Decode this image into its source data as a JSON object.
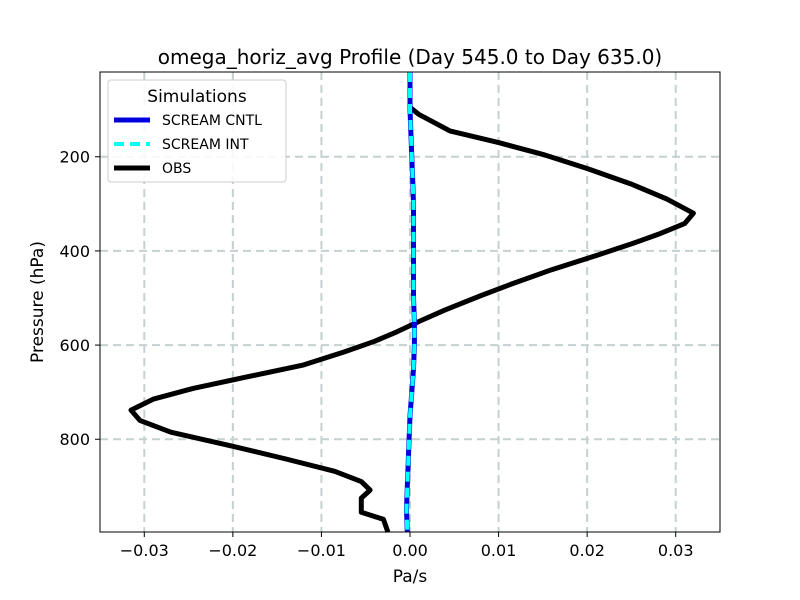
{
  "chart_data": {
    "type": "line",
    "title": "omega_horiz_avg Profile (Day 545.0 to Day 635.0)",
    "xlabel": "Pa/s",
    "ylabel": "Pressure (hPa)",
    "xlim": [
      -0.035,
      0.035
    ],
    "ylim": [
      997,
      20
    ],
    "y_inverted": true,
    "grid": true,
    "legend": {
      "title": "Simulations",
      "placement": "top-left"
    },
    "x_ticks": [
      -0.03,
      -0.02,
      -0.01,
      0.0,
      0.01,
      0.02,
      0.03
    ],
    "x_tick_labels": [
      "−0.03",
      "−0.02",
      "−0.01",
      "0.00",
      "0.01",
      "0.02",
      "0.03"
    ],
    "y_ticks": [
      200,
      400,
      600,
      800
    ],
    "y_tick_labels": [
      "200",
      "400",
      "600",
      "800"
    ],
    "series": [
      {
        "name": "SCREAM CNTL",
        "color": "#0000dd",
        "style": "solid",
        "points": [
          [
            0.0,
            20
          ],
          [
            0.0,
            100
          ],
          [
            0.0001,
            150
          ],
          [
            0.0002,
            200
          ],
          [
            0.0003,
            250
          ],
          [
            0.0004,
            300
          ],
          [
            0.0004,
            350
          ],
          [
            0.0004,
            400
          ],
          [
            0.0004,
            450
          ],
          [
            0.0004,
            500
          ],
          [
            0.0005,
            550
          ],
          [
            0.0005,
            600
          ],
          [
            0.0004,
            650
          ],
          [
            0.0002,
            700
          ],
          [
            0.0,
            750
          ],
          [
            -0.0001,
            800
          ],
          [
            -0.0002,
            850
          ],
          [
            -0.0003,
            900
          ],
          [
            -0.0004,
            950
          ],
          [
            -0.0003,
            997
          ]
        ]
      },
      {
        "name": "SCREAM INT",
        "color": "#00ffff",
        "style": "dashed",
        "points": [
          [
            0.0,
            20
          ],
          [
            0.0,
            100
          ],
          [
            0.0001,
            150
          ],
          [
            0.0002,
            200
          ],
          [
            0.0003,
            250
          ],
          [
            0.0004,
            300
          ],
          [
            0.0004,
            350
          ],
          [
            0.0004,
            400
          ],
          [
            0.0004,
            450
          ],
          [
            0.0004,
            500
          ],
          [
            0.0005,
            550
          ],
          [
            0.0005,
            600
          ],
          [
            0.0004,
            650
          ],
          [
            0.0002,
            700
          ],
          [
            0.0,
            750
          ],
          [
            -0.0001,
            800
          ],
          [
            -0.0002,
            850
          ],
          [
            -0.0003,
            900
          ],
          [
            -0.0004,
            950
          ],
          [
            -0.0003,
            997
          ]
        ]
      },
      {
        "name": "OBS",
        "color": "#000000",
        "style": "solid",
        "points": [
          [
            0.0,
            20
          ],
          [
            0.0,
            95
          ],
          [
            0.001,
            110
          ],
          [
            0.0045,
            145
          ],
          [
            0.01,
            170
          ],
          [
            0.015,
            195
          ],
          [
            0.02,
            225
          ],
          [
            0.025,
            258
          ],
          [
            0.029,
            290
          ],
          [
            0.032,
            320
          ],
          [
            0.031,
            342
          ],
          [
            0.028,
            365
          ],
          [
            0.025,
            385
          ],
          [
            0.021,
            410
          ],
          [
            0.016,
            440
          ],
          [
            0.0115,
            470
          ],
          [
            0.008,
            495
          ],
          [
            0.004,
            525
          ],
          [
            0.001,
            550
          ],
          [
            -0.0015,
            572
          ],
          [
            -0.004,
            592
          ],
          [
            -0.0075,
            615
          ],
          [
            -0.012,
            642
          ],
          [
            -0.0185,
            668
          ],
          [
            -0.0245,
            692
          ],
          [
            -0.029,
            715
          ],
          [
            -0.0315,
            738
          ],
          [
            -0.0305,
            760
          ],
          [
            -0.027,
            785
          ],
          [
            -0.02,
            815
          ],
          [
            -0.014,
            842
          ],
          [
            -0.0085,
            868
          ],
          [
            -0.0055,
            890
          ],
          [
            -0.0045,
            908
          ],
          [
            -0.0055,
            925
          ],
          [
            -0.0055,
            955
          ],
          [
            -0.003,
            970
          ],
          [
            -0.0025,
            997
          ]
        ]
      }
    ]
  }
}
